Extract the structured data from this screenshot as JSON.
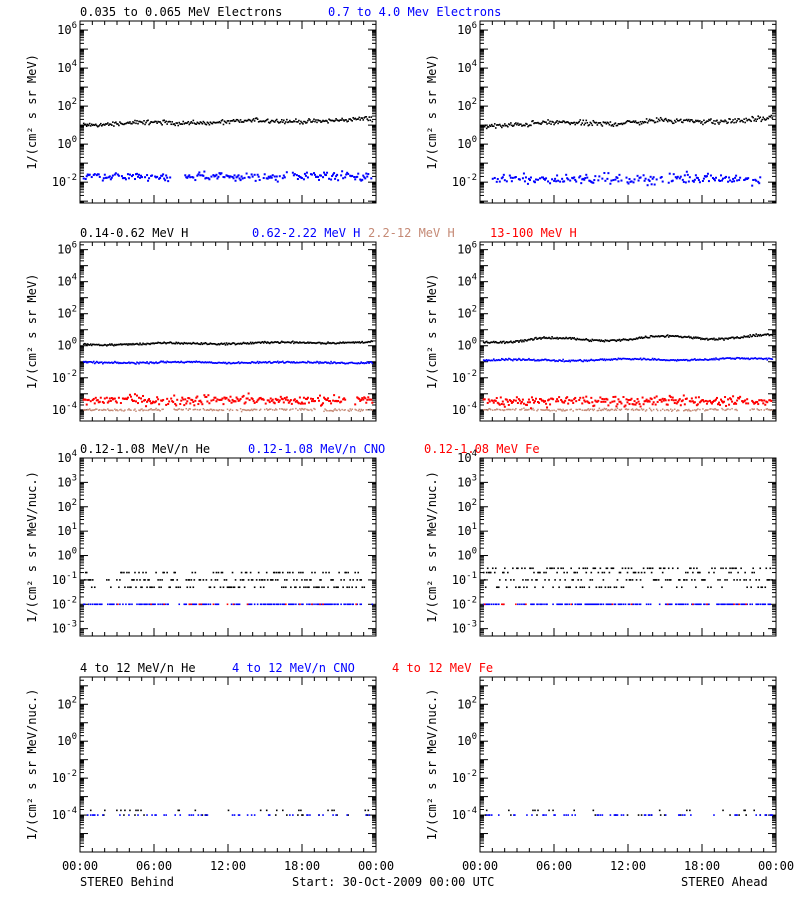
{
  "figure": {
    "footer_left": "STEREO Behind",
    "footer_center": "Start: 30-Oct-2009 00:00 UTC",
    "footer_right": "STEREO Ahead",
    "x_tick_labels": [
      "00:00",
      "06:00",
      "12:00",
      "18:00",
      "00:00"
    ],
    "colors": {
      "black": "#000000",
      "blue": "#0000ff",
      "tan": "#c58a76",
      "red": "#ff0000"
    }
  },
  "chart_data": [
    {
      "panel": "electrons",
      "type": "scatter",
      "legend": [
        {
          "label": "0.035 to 0.065 MeV Electrons",
          "color": "#000000"
        },
        {
          "label": "0.7 to 4.0 Mev Electrons",
          "color": "#0000ff"
        }
      ],
      "ylabel": "1/(cm² s sr MeV)",
      "ytick_exponents": [
        -2,
        0,
        2,
        4,
        6
      ],
      "yscale": "log",
      "ylim": [
        0.0008,
        3000000
      ],
      "xlim": [
        0,
        24
      ],
      "spacecraft": [
        {
          "name": "STEREO Behind",
          "series": [
            {
              "color": "#000000",
              "level": 11,
              "trend": 0.25,
              "noise": 0.1,
              "wiggle": 0.05,
              "density": 1.0,
              "gaps": 0.0
            },
            {
              "color": "#0000ff",
              "level": 0.02,
              "noise": 0.18,
              "wiggle": 0.04,
              "density": 0.8,
              "gaps": 0.05,
              "size": 2
            }
          ]
        },
        {
          "name": "STEREO Ahead",
          "series": [
            {
              "color": "#000000",
              "level": 10,
              "trend": 0.3,
              "noise": 0.12,
              "wiggle": 0.06,
              "density": 1.0,
              "gaps": 0.0
            },
            {
              "color": "#0000ff",
              "level": 0.015,
              "noise": 0.22,
              "wiggle": 0.04,
              "density": 0.7,
              "gaps": 0.08,
              "size": 2
            }
          ]
        }
      ]
    },
    {
      "panel": "protons",
      "type": "scatter",
      "legend": [
        {
          "label": "0.14-0.62 MeV H",
          "color": "#000000"
        },
        {
          "label": "0.62-2.22 MeV H",
          "color": "#0000ff"
        },
        {
          "label": "2.2-12 MeV H",
          "color": "#c58a76"
        },
        {
          "label": "13-100 MeV H",
          "color": "#ff0000"
        }
      ],
      "ylabel": "1/(cm² s sr MeV)",
      "ytick_exponents": [
        -4,
        -2,
        0,
        2,
        4,
        6
      ],
      "yscale": "log",
      "ylim": [
        2e-05,
        3000000
      ],
      "xlim": [
        0,
        24
      ],
      "spacecraft": [
        {
          "name": "STEREO Behind",
          "series": [
            {
              "color": "#000000",
              "level": 1.2,
              "trend": 0.15,
              "noise": 0.05,
              "wiggle": 0.04,
              "density": 1.0,
              "gaps": 0.0
            },
            {
              "color": "#0000ff",
              "level": 0.09,
              "noise": 0.05,
              "wiggle": 0.03,
              "density": 1.0,
              "gaps": 0.0
            },
            {
              "color": "#c58a76",
              "level": 0.0001,
              "noise": 0.06,
              "wiggle": 0.02,
              "density": 0.7,
              "gaps": 0.05,
              "size": 1.5
            },
            {
              "color": "#ff0000",
              "level": 0.0004,
              "noise": 0.25,
              "wiggle": 0.05,
              "density": 0.9,
              "gaps": 0.03,
              "size": 2
            }
          ]
        },
        {
          "name": "STEREO Ahead",
          "series": [
            {
              "color": "#000000",
              "level": 2.0,
              "trend": 0.3,
              "noise": 0.06,
              "wiggle": 0.12,
              "density": 1.0,
              "gaps": 0.0
            },
            {
              "color": "#0000ff",
              "level": 0.12,
              "trend": 0.1,
              "noise": 0.05,
              "wiggle": 0.05,
              "density": 1.0,
              "gaps": 0.0
            },
            {
              "color": "#c58a76",
              "level": 0.0001,
              "noise": 0.06,
              "wiggle": 0.02,
              "density": 0.7,
              "gaps": 0.05,
              "size": 1.5
            },
            {
              "color": "#ff0000",
              "level": 0.00035,
              "noise": 0.25,
              "wiggle": 0.05,
              "density": 0.9,
              "gaps": 0.03,
              "size": 2
            }
          ]
        }
      ]
    },
    {
      "panel": "low-energy-heavy-ions",
      "type": "scatter",
      "legend": [
        {
          "label": "0.12-1.08 MeV/n He",
          "color": "#000000"
        },
        {
          "label": "0.12-1.08 MeV/n CNO",
          "color": "#0000ff"
        },
        {
          "label": "0.12-1.08 MeV Fe",
          "color": "#ff0000"
        }
      ],
      "ylabel": "1/(cm² s sr MeV/nuc.)",
      "ytick_exponents": [
        -3,
        -2,
        -1,
        0,
        1,
        2,
        3,
        4
      ],
      "yscale": "log",
      "ylim": [
        0.0005,
        10000
      ],
      "xlim": [
        0,
        24
      ],
      "spacecraft": [
        {
          "name": "STEREO Behind",
          "series": [
            {
              "color": "#000000",
              "levels": [
                0.1,
                0.05,
                0.2
              ],
              "density": 0.75,
              "gaps": 0.15
            },
            {
              "color": "#0000ff",
              "levels": [
                0.01
              ],
              "density": 0.6,
              "gaps": 0.3
            },
            {
              "color": "#ff0000",
              "levels": [
                0.01
              ],
              "density": 0.12,
              "gaps": 0.5
            }
          ]
        },
        {
          "name": "STEREO Ahead",
          "series": [
            {
              "color": "#000000",
              "levels": [
                0.1,
                0.05,
                0.2,
                0.3
              ],
              "density": 0.8,
              "gaps": 0.12
            },
            {
              "color": "#0000ff",
              "levels": [
                0.01
              ],
              "density": 0.6,
              "gaps": 0.3
            },
            {
              "color": "#ff0000",
              "levels": [
                0.01
              ],
              "density": 0.12,
              "gaps": 0.5
            }
          ]
        }
      ]
    },
    {
      "panel": "high-energy-heavy-ions",
      "type": "scatter",
      "legend": [
        {
          "label": "4 to 12 MeV/n He",
          "color": "#000000"
        },
        {
          "label": "4 to 12 MeV/n CNO",
          "color": "#0000ff"
        },
        {
          "label": "4 to 12 MeV Fe",
          "color": "#ff0000"
        }
      ],
      "ylabel": "1/(cm² s sr MeV/nuc.)",
      "ytick_exponents": [
        -4,
        -2,
        0,
        2
      ],
      "yscale": "log",
      "ylim": [
        1e-06,
        3000
      ],
      "xlim": [
        0,
        24
      ],
      "spacecraft": [
        {
          "name": "STEREO Behind",
          "series": [
            {
              "color": "#000000",
              "levels": [
                0.0001,
                0.00018
              ],
              "density": 0.2,
              "gaps": 0.4
            },
            {
              "color": "#0000ff",
              "levels": [
                0.0001
              ],
              "density": 0.2,
              "gaps": 0.4
            }
          ]
        },
        {
          "name": "STEREO Ahead",
          "series": [
            {
              "color": "#000000",
              "levels": [
                0.0001,
                0.00018
              ],
              "density": 0.18,
              "gaps": 0.4
            },
            {
              "color": "#0000ff",
              "levels": [
                0.0001
              ],
              "density": 0.2,
              "gaps": 0.4
            }
          ]
        }
      ]
    }
  ]
}
